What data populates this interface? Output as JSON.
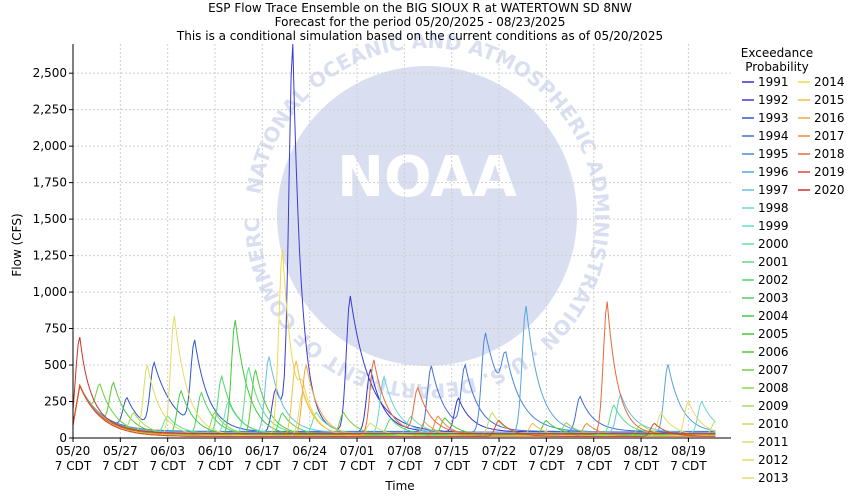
{
  "title_lines": [
    "ESP Flow Trace Ensemble on the BIG SIOUX R at WATERTOWN SD 8NW",
    "Forecast for the period 05/20/2025 - 08/23/2025",
    "This is a conditional simulation based on the current conditions as of 05/20/2025"
  ],
  "watermark": {
    "logo_text": "NOAA",
    "ring_text": "NATIONAL OCEANIC AND ATMOSPHERIC ADMINISTRATION · U.S. DEPARTMENT OF COMMERCE"
  },
  "legend": {
    "title_line1": "Exceedance",
    "title_line2": "Probability",
    "col1": [
      {
        "label": "1991",
        "color": "#3333cc"
      },
      {
        "label": "1992",
        "color": "#3a3ad6"
      },
      {
        "label": "1993",
        "color": "#2f56cc"
      },
      {
        "label": "1994",
        "color": "#3f6fd0"
      },
      {
        "label": "1995",
        "color": "#4a88d8"
      },
      {
        "label": "1996",
        "color": "#59a4e0"
      },
      {
        "label": "1997",
        "color": "#66bfe6"
      },
      {
        "label": "1998",
        "color": "#66d6d6"
      },
      {
        "label": "1999",
        "color": "#66e0c0"
      },
      {
        "label": "2000",
        "color": "#5fe0a0"
      },
      {
        "label": "2001",
        "color": "#57e085"
      },
      {
        "label": "2002",
        "color": "#4fd86e"
      },
      {
        "label": "2003",
        "color": "#47d45a"
      },
      {
        "label": "2004",
        "color": "#3fcc44"
      },
      {
        "label": "2005",
        "color": "#44c83a"
      },
      {
        "label": "2006",
        "color": "#55c83a"
      },
      {
        "label": "2007",
        "color": "#6ed040"
      },
      {
        "label": "2008",
        "color": "#8ad84a"
      },
      {
        "label": "2009",
        "color": "#a6de52"
      },
      {
        "label": "2010",
        "color": "#c2e05a"
      },
      {
        "label": "2011",
        "color": "#d6e060"
      },
      {
        "label": "2012",
        "color": "#e4dc64"
      },
      {
        "label": "2013",
        "color": "#ead866"
      }
    ],
    "col2": [
      {
        "label": "2014",
        "color": "#f0d84a"
      },
      {
        "label": "2015",
        "color": "#f0c040"
      },
      {
        "label": "2016",
        "color": "#f0a840"
      },
      {
        "label": "2017",
        "color": "#ec8a3c"
      },
      {
        "label": "2018",
        "color": "#e66a38"
      },
      {
        "label": "2019",
        "color": "#dc4a30"
      },
      {
        "label": "2020",
        "color": "#cc3322"
      }
    ]
  },
  "chart_data": {
    "type": "line",
    "xlabel": "Time",
    "ylabel": "Flow (CFS)",
    "ylim": [
      0,
      2700
    ],
    "x_tick_labels": [
      [
        "05/20",
        "7 CDT"
      ],
      [
        "05/27",
        "7 CDT"
      ],
      [
        "06/03",
        "7 CDT"
      ],
      [
        "06/10",
        "7 CDT"
      ],
      [
        "06/17",
        "7 CDT"
      ],
      [
        "06/24",
        "7 CDT"
      ],
      [
        "07/01",
        "7 CDT"
      ],
      [
        "07/08",
        "7 CDT"
      ],
      [
        "07/15",
        "7 CDT"
      ],
      [
        "07/22",
        "7 CDT"
      ],
      [
        "07/29",
        "7 CDT"
      ],
      [
        "08/05",
        "7 CDT"
      ],
      [
        "08/12",
        "7 CDT"
      ],
      [
        "08/19",
        "7 CDT"
      ]
    ],
    "y_ticks": [
      {
        "v": 0,
        "label": "0"
      },
      {
        "v": 250,
        "label": "250"
      },
      {
        "v": 500,
        "label": "500"
      },
      {
        "v": 750,
        "label": "750"
      },
      {
        "v": 1000,
        "label": "1,000"
      },
      {
        "v": 1250,
        "label": "1,250"
      },
      {
        "v": 1500,
        "label": "1,500"
      },
      {
        "v": 1750,
        "label": "1,750"
      },
      {
        "v": 2000,
        "label": "2,000"
      },
      {
        "v": 2250,
        "label": "2,250"
      },
      {
        "v": 2500,
        "label": "2,500"
      }
    ],
    "base_start": 90,
    "base_peak": 360,
    "series": [
      {
        "name": "1991",
        "color": "#3333cc",
        "base": 42,
        "peaks": [
          [
            44,
            430,
            2
          ],
          [
            57,
            230,
            2
          ]
        ]
      },
      {
        "name": "1992",
        "color": "#3a3ad6",
        "base": 38,
        "peaks": [
          [
            32.5,
            2580,
            1.3
          ],
          [
            30,
            300,
            2
          ],
          [
            41,
            930,
            3
          ]
        ]
      },
      {
        "name": "1993",
        "color": "#2f56cc",
        "base": 40,
        "peaks": [
          [
            12,
            440,
            3
          ],
          [
            18,
            570,
            2
          ],
          [
            8,
            200,
            2
          ]
        ]
      },
      {
        "name": "1994",
        "color": "#3f6fd0",
        "base": 45,
        "peaks": [
          [
            53,
            450,
            2
          ],
          [
            58,
            420,
            2
          ],
          [
            75,
            240,
            2
          ]
        ]
      },
      {
        "name": "1995",
        "color": "#4a88d8",
        "base": 40,
        "peaks": [
          [
            61,
            680,
            3
          ],
          [
            64,
            300,
            2
          ]
        ]
      },
      {
        "name": "1996",
        "color": "#59a4e0",
        "base": 35,
        "peaks": [
          [
            67,
            870,
            2
          ],
          [
            88,
            470,
            2
          ]
        ]
      },
      {
        "name": "1997",
        "color": "#66bfe6",
        "base": 38,
        "peaks": [
          [
            29,
            520,
            2
          ],
          [
            81,
            260,
            2
          ]
        ]
      },
      {
        "name": "1998",
        "color": "#66d6d6",
        "base": 30,
        "peaks": [
          [
            46,
            390,
            2
          ],
          [
            93,
            220,
            2
          ]
        ]
      },
      {
        "name": "1999",
        "color": "#66e0c0",
        "base": 28,
        "peaks": [
          [
            23,
            220,
            2
          ],
          [
            50,
            120,
            2
          ]
        ]
      },
      {
        "name": "2000",
        "color": "#5fe0a0",
        "base": 25,
        "peaks": [
          [
            14,
            120,
            2
          ],
          [
            36,
            150,
            2
          ]
        ]
      },
      {
        "name": "2001",
        "color": "#57e085",
        "base": 25,
        "peaks": [
          [
            26,
            460,
            2
          ],
          [
            80,
            200,
            2
          ]
        ]
      },
      {
        "name": "2002",
        "color": "#4fd86e",
        "base": 22,
        "peaks": [
          [
            22,
            400,
            2
          ],
          [
            47,
            110,
            2
          ]
        ]
      },
      {
        "name": "2003",
        "color": "#47d45a",
        "base": 20,
        "peaks": [
          [
            19,
            290,
            2
          ],
          [
            31,
            150,
            2
          ]
        ]
      },
      {
        "name": "2004",
        "color": "#3fcc44",
        "base": 20,
        "peaks": [
          [
            16,
            300,
            2
          ],
          [
            70,
            100,
            2
          ]
        ]
      },
      {
        "name": "2005",
        "color": "#44c83a",
        "base": 18,
        "peaks": [
          [
            24,
            790,
            2
          ],
          [
            55,
            120,
            2
          ]
        ]
      },
      {
        "name": "2006",
        "color": "#55c83a",
        "base": 18,
        "peaks": [
          [
            6,
            290,
            2
          ],
          [
            27,
            450,
            2
          ]
        ]
      },
      {
        "name": "2007",
        "color": "#6ed040",
        "base": 15,
        "peaks": [
          [
            4,
            220,
            2
          ],
          [
            40,
            160,
            2
          ]
        ]
      },
      {
        "name": "2008",
        "color": "#8ad84a",
        "base": 15,
        "peaks": [
          [
            21,
            160,
            2
          ],
          [
            73,
            90,
            2
          ]
        ]
      },
      {
        "name": "2009",
        "color": "#a6de52",
        "base": 14,
        "peaks": [
          [
            9,
            130,
            2
          ],
          [
            84,
            80,
            2
          ]
        ]
      },
      {
        "name": "2010",
        "color": "#c2e05a",
        "base": 14,
        "peaks": [
          [
            62,
            160,
            2
          ],
          [
            95,
            100,
            2
          ]
        ]
      },
      {
        "name": "2011",
        "color": "#d6e060",
        "base": 13,
        "peaks": [
          [
            11,
            470,
            2
          ],
          [
            44,
            90,
            2
          ]
        ]
      },
      {
        "name": "2012",
        "color": "#e4dc64",
        "base": 12,
        "peaks": [
          [
            15,
            820,
            2
          ],
          [
            87,
            160,
            2
          ]
        ]
      },
      {
        "name": "2013",
        "color": "#ead866",
        "base": 12,
        "peaks": [
          [
            34,
            300,
            2
          ],
          [
            91,
            240,
            2
          ]
        ]
      },
      {
        "name": "2014",
        "color": "#f0d84a",
        "base": 12,
        "peaks": [
          [
            31,
            1280,
            1.6
          ],
          [
            34,
            180,
            2
          ]
        ]
      },
      {
        "name": "2015",
        "color": "#f0c040",
        "base": 10,
        "peaks": [
          [
            33,
            520,
            2
          ],
          [
            68,
            90,
            2
          ]
        ]
      },
      {
        "name": "2016",
        "color": "#f0a840",
        "base": 10,
        "peaks": [
          [
            34.5,
            490,
            2
          ],
          [
            52,
            100,
            2
          ]
        ]
      },
      {
        "name": "2017",
        "color": "#ec8a3c",
        "base": 10,
        "peaks": [
          [
            54,
            140,
            2
          ],
          [
            76,
            90,
            2
          ]
        ]
      },
      {
        "name": "2018",
        "color": "#e66a38",
        "base": 25,
        "peaks": [
          [
            44.5,
            510,
            2
          ],
          [
            51,
            300,
            2
          ],
          [
            79,
            910,
            1.6
          ]
        ]
      },
      {
        "name": "2019",
        "color": "#dc4a30",
        "base": 10,
        "peaks": [
          [
            63,
            110,
            2
          ],
          [
            86,
            90,
            2
          ]
        ]
      },
      {
        "name": "2020",
        "color": "#cc3322",
        "base": 30,
        "peaks": [
          [
            0.9,
            360,
            1.2
          ]
        ]
      }
    ]
  }
}
